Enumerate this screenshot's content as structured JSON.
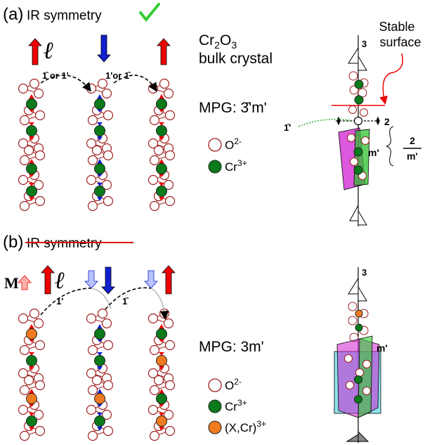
{
  "panel_a": {
    "label": "(a)",
    "heading": "IR symmetry",
    "moment": "ℓ",
    "op_left": "1̄ or 1'",
    "op_right": "1'or 1̄",
    "crystal": {
      "formula": [
        "Cr",
        "2",
        "O",
        "3"
      ],
      "description": "bulk crystal"
    },
    "mpg": "MPG: 3̄'m'",
    "legend": [
      {
        "symbol": "O",
        "charge": "2-"
      },
      {
        "symbol": "Cr",
        "charge": "3+"
      }
    ],
    "stable_surface": [
      "Stable",
      "surface"
    ],
    "axis": {
      "three": "3",
      "two": "2",
      "inversion": "1̄'",
      "mirror": "m'",
      "fraction": [
        "2",
        "m'"
      ]
    }
  },
  "panel_b": {
    "label": "(b)",
    "heading": "IR symmetry",
    "magnetization": "M",
    "moment": "ℓ",
    "op_left": "1'",
    "op_right": "1̄",
    "mpg": "MPG: 3m'",
    "legend": [
      {
        "symbol": "O",
        "charge": "2-"
      },
      {
        "symbol": "Cr",
        "charge": "3+"
      },
      {
        "symbol": "(X,Cr)",
        "charge": "3+"
      }
    ],
    "axis": {
      "three": "3",
      "mirror": "m'"
    }
  }
}
